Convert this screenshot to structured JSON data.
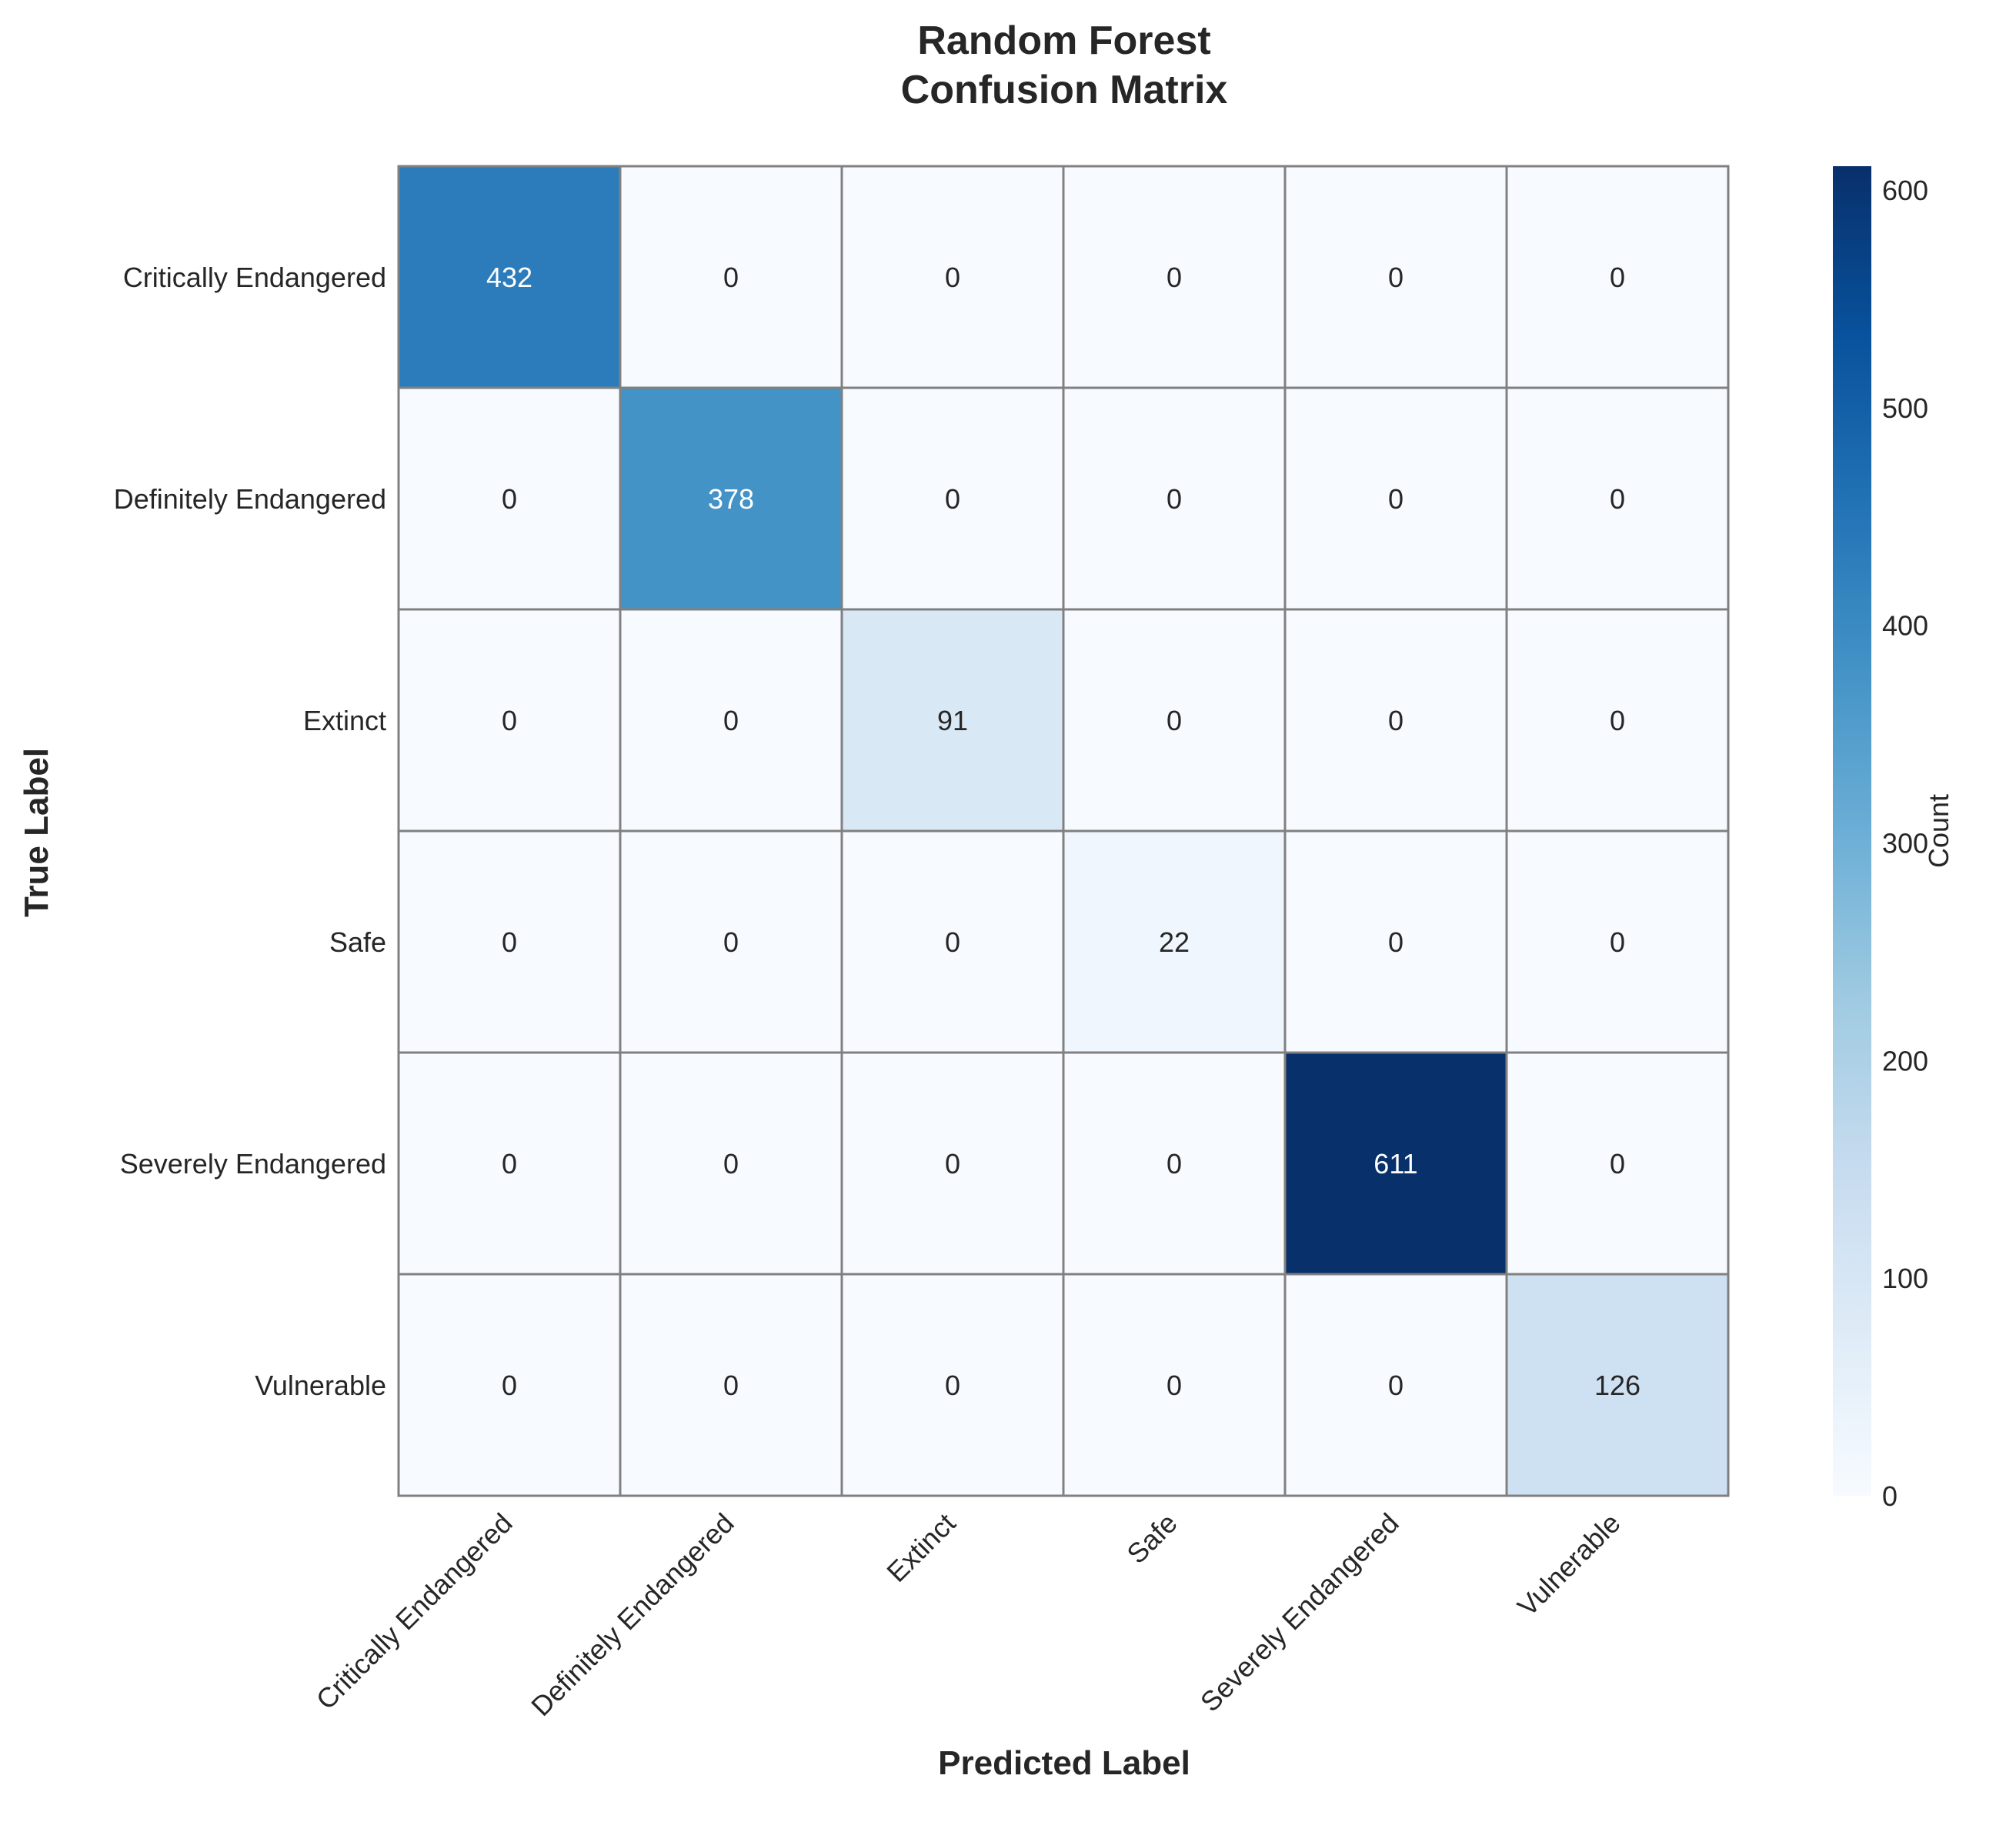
{
  "chart_data": {
    "type": "heatmap",
    "title_lines": [
      "Random Forest",
      "Confusion Matrix"
    ],
    "xlabel": "Predicted Label",
    "ylabel": "True Label",
    "x_categories": [
      "Critically Endangered",
      "Definitely Endangered",
      "Extinct",
      "Safe",
      "Severely Endangered",
      "Vulnerable"
    ],
    "y_categories": [
      "Critically Endangered",
      "Definitely Endangered",
      "Extinct",
      "Safe",
      "Severely Endangered",
      "Vulnerable"
    ],
    "values": [
      [
        432,
        0,
        0,
        0,
        0,
        0
      ],
      [
        0,
        378,
        0,
        0,
        0,
        0
      ],
      [
        0,
        0,
        91,
        0,
        0,
        0
      ],
      [
        0,
        0,
        0,
        22,
        0,
        0
      ],
      [
        0,
        0,
        0,
        0,
        611,
        0
      ],
      [
        0,
        0,
        0,
        0,
        0,
        126
      ]
    ],
    "colorbar": {
      "label": "Count",
      "range": [
        0,
        611
      ],
      "ticks": [
        0,
        100,
        200,
        300,
        400,
        500,
        600
      ]
    },
    "colormap": "Blues",
    "grid_color": "#808080"
  }
}
